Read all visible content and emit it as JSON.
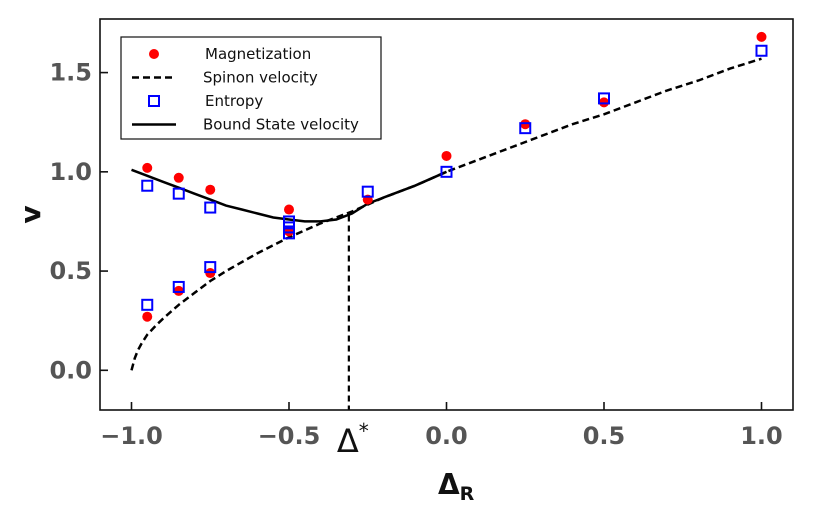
{
  "chart_data": {
    "type": "line",
    "xlabel": "Δ",
    "xlabel_sub": "R",
    "ylabel": "v",
    "xlim": [
      -1.1,
      1.1
    ],
    "ylim": [
      -0.2,
      1.77
    ],
    "grid": false,
    "legend_position": "top-left",
    "x_ticks": [
      -1.0,
      -0.5,
      0.0,
      0.5,
      1.0
    ],
    "x_tick_labels": [
      "−1.0",
      "−0.5",
      "0.0",
      "0.5",
      "1.0"
    ],
    "y_ticks": [
      0.0,
      0.5,
      1.0,
      1.5
    ],
    "y_tick_labels": [
      "0.0",
      "0.5",
      "1.0",
      "1.5"
    ],
    "annotation": {
      "text": "Δ",
      "superscript": "*",
      "x": -0.31,
      "y_top": 0.78
    },
    "series": [
      {
        "name": "Magnetization",
        "kind": "scatter",
        "marker": "circle",
        "color": "#ff0000",
        "points": [
          [
            -0.95,
            1.02
          ],
          [
            -0.85,
            0.97
          ],
          [
            -0.75,
            0.91
          ],
          [
            -0.5,
            0.81
          ],
          [
            -0.95,
            0.27
          ],
          [
            -0.85,
            0.4
          ],
          [
            -0.75,
            0.49
          ],
          [
            -0.5,
            0.7
          ],
          [
            -0.25,
            0.86
          ],
          [
            0.0,
            1.08
          ],
          [
            0.25,
            1.24
          ],
          [
            0.5,
            1.35
          ],
          [
            1.0,
            1.68
          ]
        ]
      },
      {
        "name": "Spinon velocity",
        "kind": "line",
        "style": "dashed",
        "color": "#000000",
        "points": [
          [
            -1.0,
            0.0
          ],
          [
            -0.99,
            0.06
          ],
          [
            -0.98,
            0.1
          ],
          [
            -0.97,
            0.13
          ],
          [
            -0.95,
            0.18
          ],
          [
            -0.92,
            0.23
          ],
          [
            -0.9,
            0.26
          ],
          [
            -0.85,
            0.33
          ],
          [
            -0.8,
            0.39
          ],
          [
            -0.75,
            0.45
          ],
          [
            -0.7,
            0.5
          ],
          [
            -0.6,
            0.59
          ],
          [
            -0.5,
            0.67
          ],
          [
            -0.4,
            0.74
          ],
          [
            -0.3,
            0.8
          ],
          [
            -0.2,
            0.87
          ],
          [
            -0.1,
            0.93
          ],
          [
            0.0,
            1.0
          ],
          [
            0.1,
            1.06
          ],
          [
            0.2,
            1.12
          ],
          [
            0.3,
            1.18
          ],
          [
            0.4,
            1.24
          ],
          [
            0.5,
            1.29
          ],
          [
            0.6,
            1.35
          ],
          [
            0.7,
            1.41
          ],
          [
            0.8,
            1.46
          ],
          [
            0.9,
            1.52
          ],
          [
            1.0,
            1.57
          ]
        ]
      },
      {
        "name": "Entropy",
        "kind": "scatter",
        "marker": "square-open",
        "color": "#0000ff",
        "points": [
          [
            -0.95,
            0.93
          ],
          [
            -0.85,
            0.89
          ],
          [
            -0.75,
            0.82
          ],
          [
            -0.5,
            0.75
          ],
          [
            -0.5,
            0.72
          ],
          [
            -0.95,
            0.33
          ],
          [
            -0.85,
            0.42
          ],
          [
            -0.75,
            0.52
          ],
          [
            -0.5,
            0.69
          ],
          [
            -0.25,
            0.9
          ],
          [
            0.0,
            1.0
          ],
          [
            0.25,
            1.22
          ],
          [
            0.5,
            1.37
          ],
          [
            1.0,
            1.61
          ]
        ]
      },
      {
        "name": "Bound State velocity",
        "kind": "line",
        "style": "solid",
        "color": "#000000",
        "points": [
          [
            -1.0,
            1.01
          ],
          [
            -0.95,
            0.98
          ],
          [
            -0.9,
            0.95
          ],
          [
            -0.85,
            0.92
          ],
          [
            -0.8,
            0.89
          ],
          [
            -0.75,
            0.86
          ],
          [
            -0.7,
            0.83
          ],
          [
            -0.65,
            0.81
          ],
          [
            -0.6,
            0.79
          ],
          [
            -0.55,
            0.77
          ],
          [
            -0.5,
            0.76
          ],
          [
            -0.45,
            0.75
          ],
          [
            -0.4,
            0.75
          ],
          [
            -0.35,
            0.76
          ],
          [
            -0.3,
            0.79
          ],
          [
            -0.25,
            0.84
          ],
          [
            -0.2,
            0.87
          ],
          [
            -0.1,
            0.93
          ],
          [
            0.0,
            1.0
          ]
        ]
      }
    ]
  }
}
